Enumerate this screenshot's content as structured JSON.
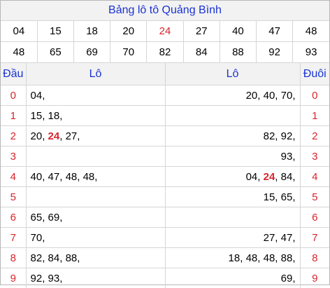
{
  "title": "Bảng lô tô Quảng Bình",
  "numbers_row1": [
    "04",
    "15",
    "18",
    "20",
    "24",
    "27",
    "40",
    "47",
    "48"
  ],
  "numbers_row2": [
    "48",
    "65",
    "69",
    "70",
    "82",
    "84",
    "88",
    "92",
    "93"
  ],
  "highlight_index_row1": 4,
  "headers": {
    "dau": "Đầu",
    "lo_left": "Lô",
    "lo_right": "Lô",
    "duoi": "Đuôi"
  },
  "rows": [
    {
      "dau": "0",
      "left": [
        {
          "t": "04"
        }
      ],
      "right": [
        {
          "t": "20"
        },
        {
          "t": "40"
        },
        {
          "t": "70"
        }
      ],
      "duoi": "0"
    },
    {
      "dau": "1",
      "left": [
        {
          "t": "15"
        },
        {
          "t": "18"
        }
      ],
      "right": [],
      "duoi": "1"
    },
    {
      "dau": "2",
      "left": [
        {
          "t": "20"
        },
        {
          "t": "24",
          "hl": true
        },
        {
          "t": "27"
        }
      ],
      "right": [
        {
          "t": "82"
        },
        {
          "t": "92"
        }
      ],
      "duoi": "2"
    },
    {
      "dau": "3",
      "left": [],
      "right": [
        {
          "t": "93"
        }
      ],
      "duoi": "3"
    },
    {
      "dau": "4",
      "left": [
        {
          "t": "40"
        },
        {
          "t": "47"
        },
        {
          "t": "48"
        },
        {
          "t": "48"
        }
      ],
      "right": [
        {
          "t": "04"
        },
        {
          "t": "24",
          "hl": true
        },
        {
          "t": "84"
        }
      ],
      "duoi": "4"
    },
    {
      "dau": "5",
      "left": [],
      "right": [
        {
          "t": "15"
        },
        {
          "t": "65"
        }
      ],
      "duoi": "5"
    },
    {
      "dau": "6",
      "left": [
        {
          "t": "65"
        },
        {
          "t": "69"
        }
      ],
      "right": [],
      "duoi": "6"
    },
    {
      "dau": "7",
      "left": [
        {
          "t": "70"
        }
      ],
      "right": [
        {
          "t": "27"
        },
        {
          "t": "47"
        }
      ],
      "duoi": "7"
    },
    {
      "dau": "8",
      "left": [
        {
          "t": "82"
        },
        {
          "t": "84"
        },
        {
          "t": "88"
        }
      ],
      "right": [
        {
          "t": "18"
        },
        {
          "t": "48"
        },
        {
          "t": "48"
        },
        {
          "t": "88"
        }
      ],
      "duoi": "8"
    },
    {
      "dau": "9",
      "left": [
        {
          "t": "92"
        },
        {
          "t": "93"
        }
      ],
      "right": [
        {
          "t": "69"
        }
      ],
      "duoi": "9"
    }
  ],
  "colors": {
    "title": "#1b33d3",
    "accent": "#d9242b",
    "header_bg": "#f2f2f2"
  }
}
